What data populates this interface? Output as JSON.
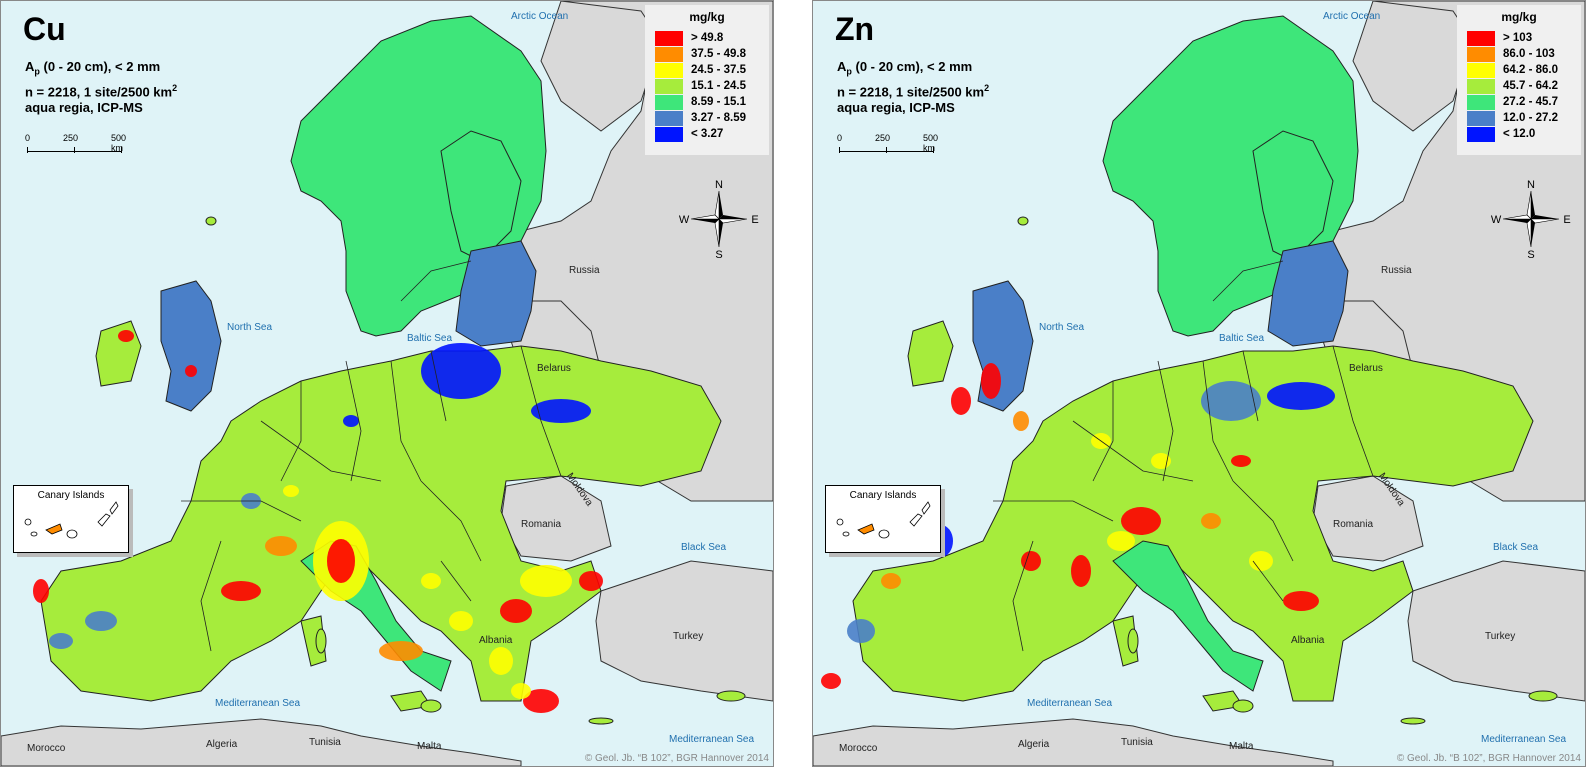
{
  "panels": [
    {
      "element": "Cu",
      "info_line1": "A",
      "info_line1_sub": "p",
      "info_line1_rest": " (0 - 20 cm), < 2 mm",
      "info_line2": "n = 2218, 1 site/2500 km",
      "info_line2_sup": "2",
      "info_line3": "aqua regia, ICP-MS",
      "legend": {
        "unit": "mg/kg",
        "classes": [
          {
            "label": "> 49.8",
            "color": "#ff0000"
          },
          {
            "label": "37.5 - 49.8",
            "color": "#ff8c00"
          },
          {
            "label": "24.5 - 37.5",
            "color": "#ffff00"
          },
          {
            "label": "15.1 - 24.5",
            "color": "#a6ec3c"
          },
          {
            "label": "8.59 - 15.1",
            "color": "#3ee67a"
          },
          {
            "label": "3.27 - 8.59",
            "color": "#4a7fc8"
          },
          {
            "label": "< 3.27",
            "color": "#0014ff"
          }
        ]
      },
      "copyright": "© Geol. Jb. “B 102”, BGR Hannover 2014"
    },
    {
      "element": "Zn",
      "info_line1": "A",
      "info_line1_sub": "p",
      "info_line1_rest": " (0 - 20 cm), < 2 mm",
      "info_line2": "n = 2218, 1 site/2500 km",
      "info_line2_sup": "2",
      "info_line3": "aqua regia, ICP-MS",
      "legend": {
        "unit": "mg/kg",
        "classes": [
          {
            "label": "> 103",
            "color": "#ff0000"
          },
          {
            "label": "86.0 - 103",
            "color": "#ff8c00"
          },
          {
            "label": "64.2 - 86.0",
            "color": "#ffff00"
          },
          {
            "label": "45.7 - 64.2",
            "color": "#a6ec3c"
          },
          {
            "label": "27.2 - 45.7",
            "color": "#3ee67a"
          },
          {
            "label": "12.0 - 27.2",
            "color": "#4a7fc8"
          },
          {
            "label": "< 12.0",
            "color": "#0014ff"
          }
        ]
      },
      "copyright": "© Geol. Jb. “B 102”, BGR Hannover 2014"
    }
  ],
  "scale": {
    "ticks": [
      "0",
      "250",
      "500 km"
    ]
  },
  "compass": {
    "n": "N",
    "s": "S",
    "e": "E",
    "w": "W"
  },
  "seas": {
    "arctic": "Arctic Ocean",
    "north": "North Sea",
    "baltic": "Baltic Sea",
    "black": "Black Sea",
    "med1": "Mediterranean Sea",
    "med2": "Mediterranean Sea"
  },
  "countries": {
    "russia": "Russia",
    "belarus": "Belarus",
    "moldova": "Moldova",
    "romania": "Romania",
    "turkey": "Turkey",
    "albania": "Albania",
    "morocco": "Morocco",
    "algeria": "Algeria",
    "tunisia": "Tunisia",
    "malta": "Malta"
  },
  "inset": {
    "title": "Canary Islands"
  },
  "colors": {
    "sea": "#dff3f7",
    "non_data_land": "#d9d9d9"
  }
}
